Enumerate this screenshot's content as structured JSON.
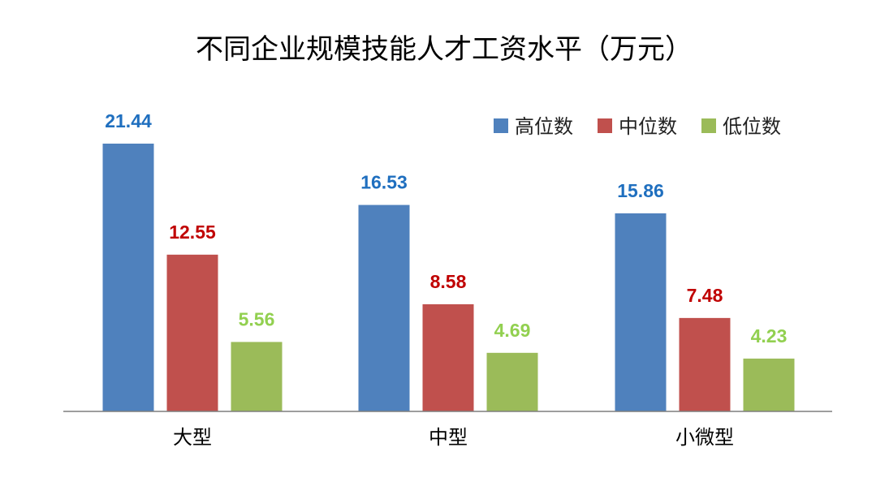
{
  "chart_data": {
    "type": "bar",
    "title": "不同企业规模技能人才工资水平（万元）",
    "categories": [
      "大型",
      "中型",
      "小微型"
    ],
    "series": [
      {
        "name": "高位数",
        "values": [
          21.44,
          16.53,
          15.86
        ],
        "color": "#4F81BD",
        "label_color": "#1F6FBF"
      },
      {
        "name": "中位数",
        "values": [
          12.55,
          8.58,
          7.48
        ],
        "color": "#C0504D",
        "label_color": "#C00000"
      },
      {
        "name": "低位数",
        "values": [
          5.56,
          4.69,
          4.23
        ],
        "color": "#9BBB59",
        "label_color": "#92D050"
      }
    ],
    "ylim": [
      0,
      21.44
    ],
    "grid": false,
    "legend_position": "top-right"
  }
}
